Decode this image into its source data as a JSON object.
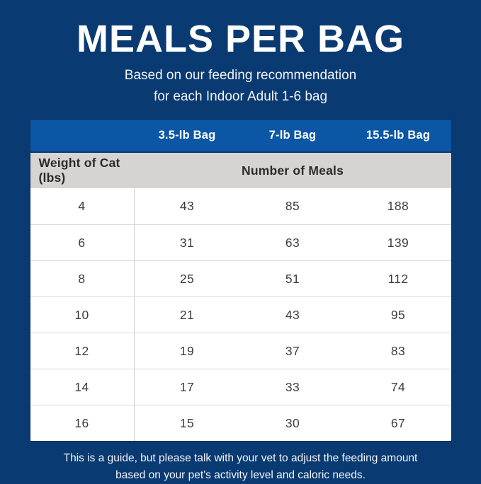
{
  "colors": {
    "background": "#0a3a72",
    "table_header_blue": "#0b57a5",
    "subheader_gray": "#d6d4d2",
    "cell_text": "#3d3d3d",
    "title_text": "#ffffff"
  },
  "header": {
    "title": "MEALS PER BAG",
    "subtitle_line1": "Based on our feeding recommendation",
    "subtitle_line2": "for each Indoor Adult 1-6 bag"
  },
  "footer": {
    "line1": "This is a guide, but please talk with your vet to adjust the feeding amount",
    "line2": "based on your pet's activity level and caloric needs."
  },
  "chart_data": {
    "type": "table",
    "title": "MEALS PER BAG",
    "subtitle": "Based on our feeding recommendation for each Indoor Adult 1-6 bag",
    "bag_columns": [
      "3.5-lb Bag",
      "7-lb Bag",
      "15.5-lb Bag"
    ],
    "row_header_label": "Weight of Cat (lbs)",
    "value_group_label": "Number of Meals",
    "rows": [
      {
        "weight": 4,
        "meals": [
          43,
          85,
          188
        ]
      },
      {
        "weight": 6,
        "meals": [
          31,
          63,
          139
        ]
      },
      {
        "weight": 8,
        "meals": [
          25,
          51,
          112
        ]
      },
      {
        "weight": 10,
        "meals": [
          21,
          43,
          95
        ]
      },
      {
        "weight": 12,
        "meals": [
          19,
          37,
          83
        ]
      },
      {
        "weight": 14,
        "meals": [
          17,
          33,
          74
        ]
      },
      {
        "weight": 16,
        "meals": [
          15,
          30,
          67
        ]
      }
    ],
    "note": "This is a guide, but please talk with your vet to adjust the feeding amount based on your pet's activity level and caloric needs."
  }
}
